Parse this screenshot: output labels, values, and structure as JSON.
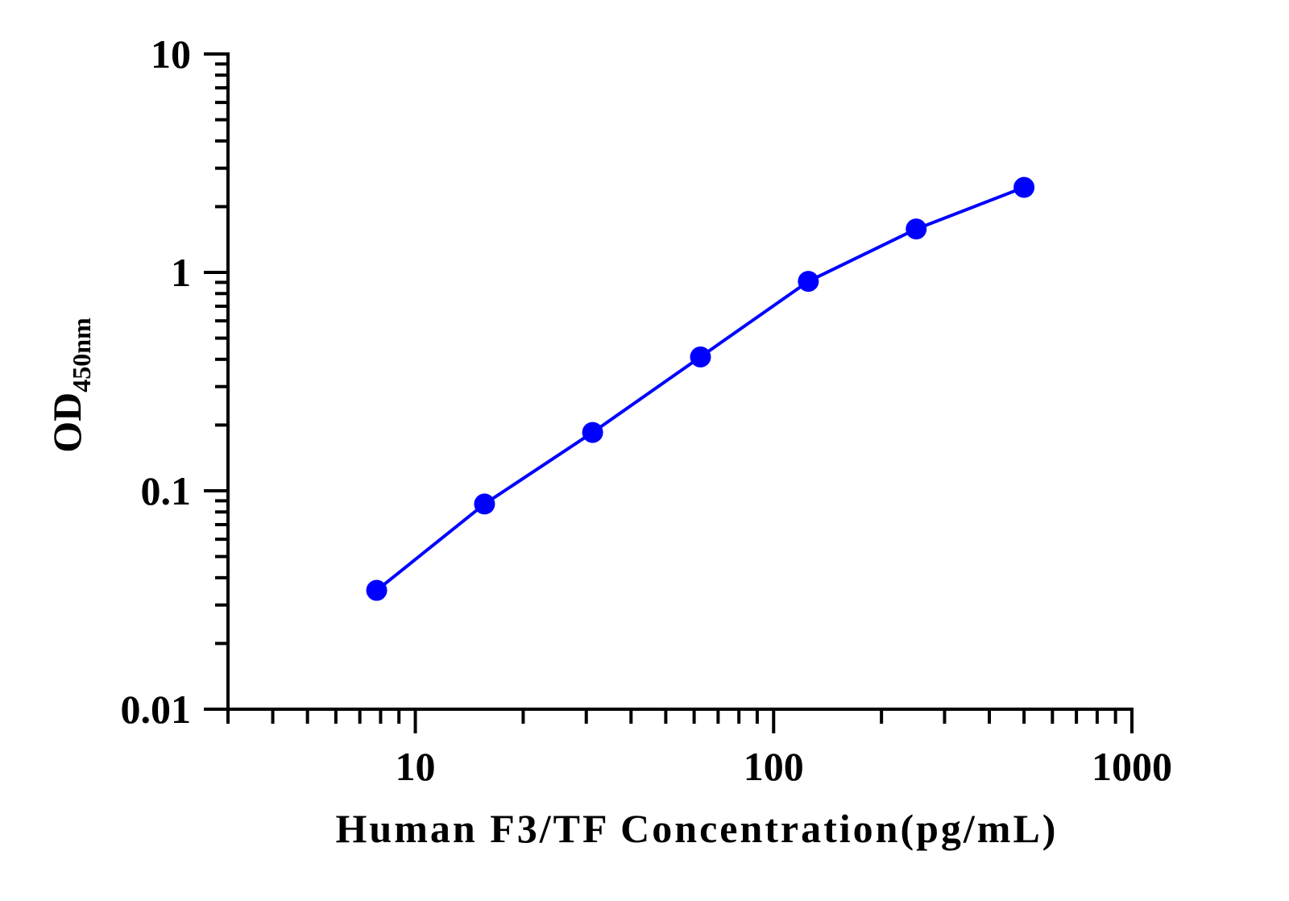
{
  "chart_data": {
    "type": "line",
    "xlabel": "Human F3/TF Concentration(pg/mL)",
    "ylabel": {
      "main": "OD",
      "subscript": "450nm"
    },
    "x_scale": "log",
    "y_scale": "log",
    "xlim": [
      3,
      1000
    ],
    "ylim": [
      0.01,
      10
    ],
    "x_tick_labels": [
      "10",
      "100",
      "1000"
    ],
    "y_tick_labels": [
      "10",
      "1",
      "0.1",
      "0.01"
    ],
    "grid": false,
    "legend": "none",
    "series": [
      {
        "color": "#0000ff",
        "marker": "circle",
        "points": [
          {
            "x": 7.8,
            "y": 0.035
          },
          {
            "x": 15.6,
            "y": 0.087
          },
          {
            "x": 31.25,
            "y": 0.185
          },
          {
            "x": 62.5,
            "y": 0.41
          },
          {
            "x": 125,
            "y": 0.91
          },
          {
            "x": 250,
            "y": 1.58
          },
          {
            "x": 500,
            "y": 2.45
          }
        ]
      }
    ]
  }
}
